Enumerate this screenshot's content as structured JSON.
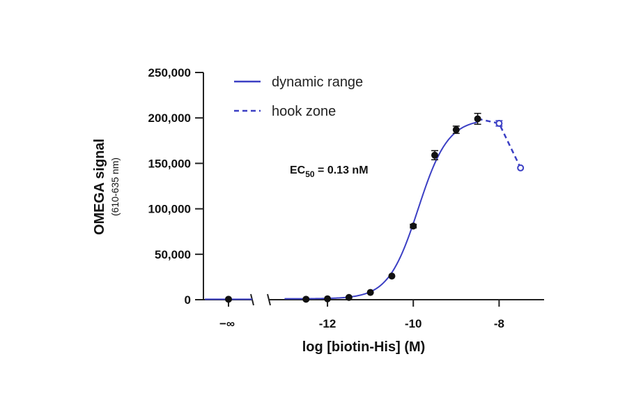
{
  "chart_data": {
    "type": "scatter",
    "xlabel": "log [biotin-His] (M)",
    "ylabel": "OMEGA signal",
    "ylabel_sub": "(610-635 nm)",
    "x_ticks": [
      -12,
      -10,
      -8
    ],
    "x_tick_labels": [
      "-12",
      "-10",
      "-8"
    ],
    "x_break_label": "−∞",
    "xlim": [
      -13.3,
      -7.0
    ],
    "y_ticks": [
      0,
      50000,
      100000,
      150000,
      200000,
      250000
    ],
    "y_tick_labels": [
      "0",
      "50,000",
      "100,000",
      "150,000",
      "200,000",
      "250,000"
    ],
    "ylim": [
      0,
      250000
    ],
    "grid": false,
    "legend_position": "top-left",
    "colors": {
      "fit": "#3b3fc4",
      "points": "#111111",
      "hook_points": "#3b3fc4"
    },
    "annotation": {
      "prefix": "EC",
      "subscript": "50",
      "suffix": " =  0.13 nM"
    },
    "baseline_point": {
      "x_label": "−∞",
      "y": 500
    },
    "series": [
      {
        "name": "dynamic range",
        "style": "solid",
        "x": [
          -12.5,
          -12.0,
          -11.5,
          -11.0,
          -10.5,
          -10.0,
          -9.5,
          -9.0,
          -8.5
        ],
        "y": [
          500,
          1000,
          2500,
          8000,
          26000,
          81000,
          159000,
          187000,
          199000
        ],
        "err": [
          0,
          0,
          0,
          0,
          0,
          2000,
          5000,
          4000,
          6000
        ]
      },
      {
        "name": "hook zone",
        "style": "dashed",
        "x": [
          -8.5,
          -8.0,
          -7.5
        ],
        "y": [
          199000,
          194000,
          145000
        ],
        "err": [
          0,
          3000,
          0
        ]
      }
    ],
    "fit": {
      "bottom": 1000,
      "top": 199000,
      "log_ec50": -9.886,
      "hill": 1.25,
      "x_start": -13.0,
      "x_end": -8.5
    }
  }
}
